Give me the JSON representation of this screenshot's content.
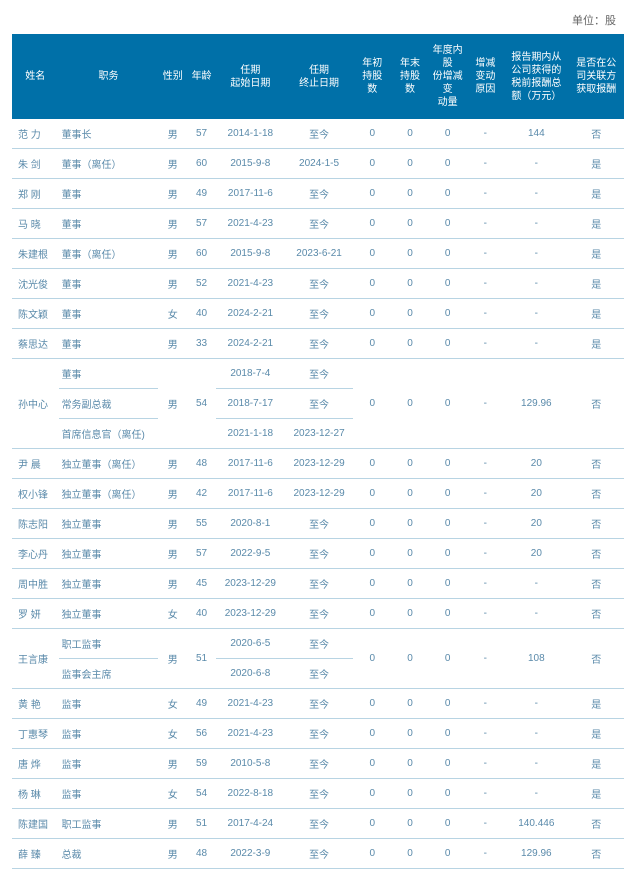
{
  "unit_label": "单位：股",
  "headers": {
    "name": "姓名",
    "position": "职务",
    "gender": "性别",
    "age": "年龄",
    "start": "任期\n起始日期",
    "end": "任期\n终止日期",
    "begin_shares": "年初\n持股\n数",
    "end_shares": "年末\n持股\n数",
    "change": "年度内股\n份增减变\n动量",
    "reason": "增减\n变动\n原因",
    "comp": "报告期内从\n公司获得的\n税前报酬总\n额（万元）",
    "related": "是否在公\n司关联方\n获取报酬"
  },
  "styling": {
    "header_bg": "#0070a8",
    "header_fg": "#ffffff",
    "cell_fg": "#5a8aaa",
    "row_border": "#b8d4e3",
    "body_bg": "#ffffff",
    "font_size_cell": 10,
    "font_size_header": 10
  },
  "rows": [
    {
      "name": "范   力",
      "pos": [
        "董事长"
      ],
      "sex": "男",
      "age": "57",
      "start": [
        "2014-1-18"
      ],
      "end": [
        "至今"
      ],
      "bs": "0",
      "es": "0",
      "chg": "0",
      "rsn": "-",
      "comp": "144",
      "rel": "否"
    },
    {
      "name": "朱   剑",
      "pos": [
        "董事（离任）"
      ],
      "sex": "男",
      "age": "60",
      "start": [
        "2015-9-8"
      ],
      "end": [
        "2024-1-5"
      ],
      "bs": "0",
      "es": "0",
      "chg": "0",
      "rsn": "-",
      "comp": "-",
      "rel": "是"
    },
    {
      "name": "郑   刚",
      "pos": [
        "董事"
      ],
      "sex": "男",
      "age": "49",
      "start": [
        "2017-11-6"
      ],
      "end": [
        "至今"
      ],
      "bs": "0",
      "es": "0",
      "chg": "0",
      "rsn": "-",
      "comp": "-",
      "rel": "是"
    },
    {
      "name": "马   晓",
      "pos": [
        "董事"
      ],
      "sex": "男",
      "age": "57",
      "start": [
        "2021-4-23"
      ],
      "end": [
        "至今"
      ],
      "bs": "0",
      "es": "0",
      "chg": "0",
      "rsn": "-",
      "comp": "-",
      "rel": "是"
    },
    {
      "name": "朱建根",
      "pos": [
        "董事（离任）"
      ],
      "sex": "男",
      "age": "60",
      "start": [
        "2015-9-8"
      ],
      "end": [
        "2023-6-21"
      ],
      "bs": "0",
      "es": "0",
      "chg": "0",
      "rsn": "-",
      "comp": "-",
      "rel": "是"
    },
    {
      "name": "沈光俊",
      "pos": [
        "董事"
      ],
      "sex": "男",
      "age": "52",
      "start": [
        "2021-4-23"
      ],
      "end": [
        "至今"
      ],
      "bs": "0",
      "es": "0",
      "chg": "0",
      "rsn": "-",
      "comp": "-",
      "rel": "是"
    },
    {
      "name": "陈文颖",
      "pos": [
        "董事"
      ],
      "sex": "女",
      "age": "40",
      "start": [
        "2024-2-21"
      ],
      "end": [
        "至今"
      ],
      "bs": "0",
      "es": "0",
      "chg": "0",
      "rsn": "-",
      "comp": "-",
      "rel": "是"
    },
    {
      "name": "蔡思达",
      "pos": [
        "董事"
      ],
      "sex": "男",
      "age": "33",
      "start": [
        "2024-2-21"
      ],
      "end": [
        "至今"
      ],
      "bs": "0",
      "es": "0",
      "chg": "0",
      "rsn": "-",
      "comp": "-",
      "rel": "是"
    },
    {
      "name": "孙中心",
      "pos": [
        "董事",
        "常务副总裁",
        "首席信息官（离任)"
      ],
      "sex": "男",
      "age": "54",
      "start": [
        "2018-7-4",
        "2018-7-17",
        "2021-1-18"
      ],
      "end": [
        "至今",
        "至今",
        "2023-12-27"
      ],
      "bs": "0",
      "es": "0",
      "chg": "0",
      "rsn": "-",
      "comp": "129.96",
      "rel": "否"
    },
    {
      "name": "尹   晨",
      "pos": [
        "独立董事（离任）"
      ],
      "sex": "男",
      "age": "48",
      "start": [
        "2017-11-6"
      ],
      "end": [
        "2023-12-29"
      ],
      "bs": "0",
      "es": "0",
      "chg": "0",
      "rsn": "-",
      "comp": "20",
      "rel": "否"
    },
    {
      "name": "权小锋",
      "pos": [
        "独立董事（离任）"
      ],
      "sex": "男",
      "age": "42",
      "start": [
        "2017-11-6"
      ],
      "end": [
        "2023-12-29"
      ],
      "bs": "0",
      "es": "0",
      "chg": "0",
      "rsn": "-",
      "comp": "20",
      "rel": "否"
    },
    {
      "name": "陈志阳",
      "pos": [
        "独立董事"
      ],
      "sex": "男",
      "age": "55",
      "start": [
        "2020-8-1"
      ],
      "end": [
        "至今"
      ],
      "bs": "0",
      "es": "0",
      "chg": "0",
      "rsn": "-",
      "comp": "20",
      "rel": "否"
    },
    {
      "name": "李心丹",
      "pos": [
        "独立董事"
      ],
      "sex": "男",
      "age": "57",
      "start": [
        "2022-9-5"
      ],
      "end": [
        "至今"
      ],
      "bs": "0",
      "es": "0",
      "chg": "0",
      "rsn": "-",
      "comp": "20",
      "rel": "否"
    },
    {
      "name": "周中胜",
      "pos": [
        "独立董事"
      ],
      "sex": "男",
      "age": "45",
      "start": [
        "2023-12-29"
      ],
      "end": [
        "至今"
      ],
      "bs": "0",
      "es": "0",
      "chg": "0",
      "rsn": "-",
      "comp": "-",
      "rel": "否"
    },
    {
      "name": "罗   妍",
      "pos": [
        "独立董事"
      ],
      "sex": "女",
      "age": "40",
      "start": [
        "2023-12-29"
      ],
      "end": [
        "至今"
      ],
      "bs": "0",
      "es": "0",
      "chg": "0",
      "rsn": "-",
      "comp": "-",
      "rel": "否"
    },
    {
      "name": "王言康",
      "pos": [
        "职工监事",
        "监事会主席"
      ],
      "sex": "男",
      "age": "51",
      "start": [
        "2020-6-5",
        "2020-6-8"
      ],
      "end": [
        "至今",
        "至今"
      ],
      "bs": "0",
      "es": "0",
      "chg": "0",
      "rsn": "-",
      "comp": "108",
      "rel": "否"
    },
    {
      "name": "黄   艳",
      "pos": [
        "监事"
      ],
      "sex": "女",
      "age": "49",
      "start": [
        "2021-4-23"
      ],
      "end": [
        "至今"
      ],
      "bs": "0",
      "es": "0",
      "chg": "0",
      "rsn": "-",
      "comp": "-",
      "rel": "是"
    },
    {
      "name": "丁惠琴",
      "pos": [
        "监事"
      ],
      "sex": "女",
      "age": "56",
      "start": [
        "2021-4-23"
      ],
      "end": [
        "至今"
      ],
      "bs": "0",
      "es": "0",
      "chg": "0",
      "rsn": "-",
      "comp": "-",
      "rel": "是"
    },
    {
      "name": "唐   烨",
      "pos": [
        "监事"
      ],
      "sex": "男",
      "age": "59",
      "start": [
        "2010-5-8"
      ],
      "end": [
        "至今"
      ],
      "bs": "0",
      "es": "0",
      "chg": "0",
      "rsn": "-",
      "comp": "-",
      "rel": "是"
    },
    {
      "name": "杨   琳",
      "pos": [
        "监事"
      ],
      "sex": "女",
      "age": "54",
      "start": [
        "2022-8-18"
      ],
      "end": [
        "至今"
      ],
      "bs": "0",
      "es": "0",
      "chg": "0",
      "rsn": "-",
      "comp": "-",
      "rel": "是"
    },
    {
      "name": "陈建国",
      "pos": [
        "职工监事"
      ],
      "sex": "男",
      "age": "51",
      "start": [
        "2017-4-24"
      ],
      "end": [
        "至今"
      ],
      "bs": "0",
      "es": "0",
      "chg": "0",
      "rsn": "-",
      "comp": "140.446",
      "rel": "否"
    },
    {
      "name": "薛   臻",
      "pos": [
        "总裁"
      ],
      "sex": "男",
      "age": "48",
      "start": [
        "2022-3-9"
      ],
      "end": [
        "至今"
      ],
      "bs": "0",
      "es": "0",
      "chg": "0",
      "rsn": "-",
      "comp": "129.96",
      "rel": "否"
    }
  ]
}
